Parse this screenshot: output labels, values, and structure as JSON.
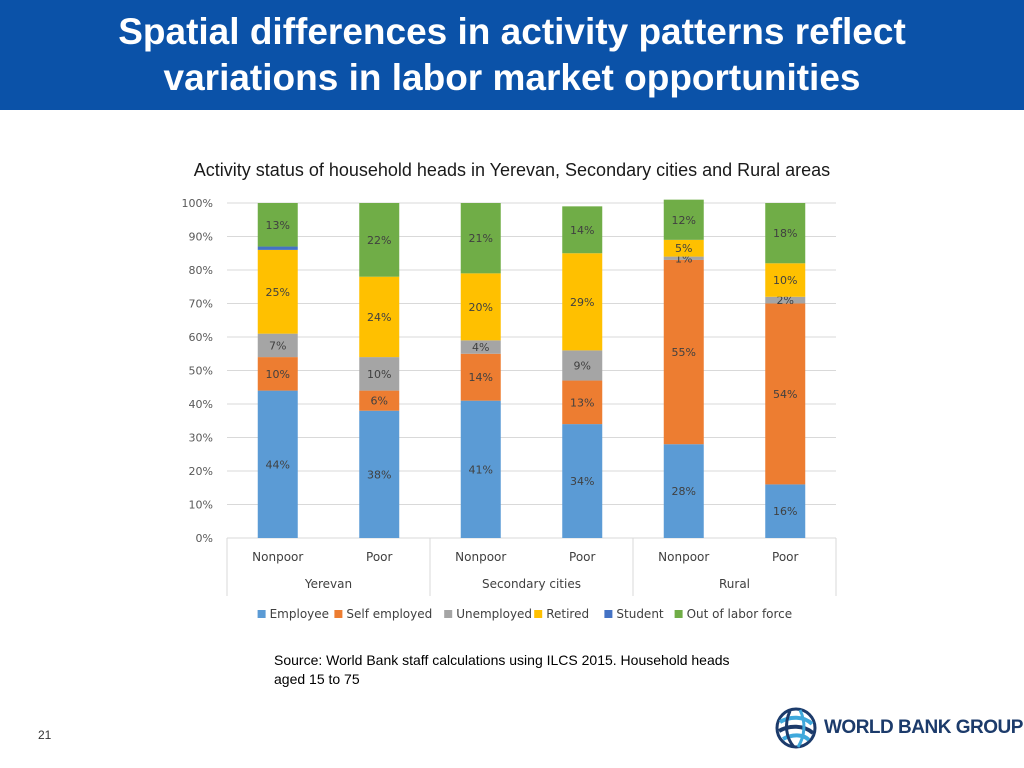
{
  "slide": {
    "title_line1": "Spatial differences in activity patterns reflect",
    "title_line2": "variations in labor market opportunities",
    "source_line1": "Source: World Bank staff calculations using ILCS 2015. Household heads",
    "source_line2": "aged 15 to 75",
    "page_number": "21",
    "logo_text": "WORLD BANK GROUP"
  },
  "colors": {
    "title_bg": "#0b52a8",
    "Employee": "#5b9bd5",
    "Self employed": "#ed7d31",
    "Unemployed": "#a5a5a5",
    "Retired": "#ffc000",
    "Student": "#4472c4",
    "Out of labor force": "#70ad47"
  },
  "chart_data": {
    "type": "bar",
    "stacked": true,
    "title": "Activity status of household heads in Yerevan, Secondary cities and Rural areas",
    "ylim": [
      0,
      100
    ],
    "y_ticks": [
      "0%",
      "10%",
      "20%",
      "30%",
      "40%",
      "50%",
      "60%",
      "70%",
      "80%",
      "90%",
      "100%"
    ],
    "categories": [
      "Nonpoor",
      "Poor",
      "Nonpoor",
      "Poor",
      "Nonpoor",
      "Poor"
    ],
    "groups": [
      {
        "label": "Yerevan",
        "span": 2
      },
      {
        "label": "Secondary cities",
        "span": 2
      },
      {
        "label": "Rural",
        "span": 2
      }
    ],
    "legend_position": "bottom",
    "series": [
      {
        "name": "Employee",
        "values": [
          44,
          38,
          41,
          34,
          28,
          16
        ],
        "labels": [
          "44%",
          "38%",
          "41%",
          "34%",
          "28%",
          "16%"
        ]
      },
      {
        "name": "Self employed",
        "values": [
          10,
          6,
          14,
          13,
          55,
          54
        ],
        "labels": [
          "10%",
          "6%",
          "14%",
          "13%",
          "55%",
          "54%"
        ]
      },
      {
        "name": "Unemployed",
        "values": [
          7,
          10,
          4,
          9,
          1,
          2
        ],
        "labels": [
          "7%",
          "10%",
          "4%",
          "9%",
          "1%",
          "2%"
        ]
      },
      {
        "name": "Retired",
        "values": [
          25,
          24,
          20,
          29,
          5,
          10
        ],
        "labels": [
          "25%",
          "24%",
          "20%",
          "29%",
          "5%",
          "10%"
        ]
      },
      {
        "name": "Student",
        "values": [
          1,
          0,
          0,
          0,
          0,
          0
        ],
        "labels": [
          "",
          "",
          "",
          "",
          "",
          ""
        ]
      },
      {
        "name": "Out of labor force",
        "values": [
          13,
          22,
          21,
          14,
          12,
          18
        ],
        "labels": [
          "13%",
          "22%",
          "21%",
          "14%",
          "12%",
          "18%"
        ]
      }
    ]
  }
}
